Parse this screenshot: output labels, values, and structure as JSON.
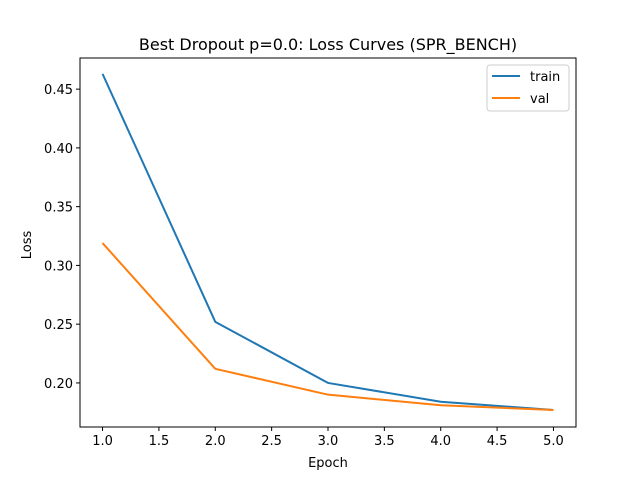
{
  "chart_data": {
    "type": "line",
    "title": "Best Dropout p=0.0: Loss Curves (SPR_BENCH)",
    "xlabel": "Epoch",
    "ylabel": "Loss",
    "xlim": [
      0.8,
      5.2
    ],
    "ylim": [
      0.1625,
      0.4765
    ],
    "x": [
      1,
      2,
      3,
      4,
      5
    ],
    "xticks": [
      1.0,
      1.5,
      2.0,
      2.5,
      3.0,
      3.5,
      4.0,
      4.5,
      5.0
    ],
    "xtick_labels": [
      "1.0",
      "1.5",
      "2.0",
      "2.5",
      "3.0",
      "3.5",
      "4.0",
      "4.5",
      "5.0"
    ],
    "yticks": [
      0.2,
      0.25,
      0.3,
      0.35,
      0.4,
      0.45
    ],
    "ytick_labels": [
      "0.20",
      "0.25",
      "0.30",
      "0.35",
      "0.40",
      "0.45"
    ],
    "series": [
      {
        "name": "train",
        "color": "#1f77b4",
        "values": [
          0.463,
          0.252,
          0.2,
          0.184,
          0.177
        ]
      },
      {
        "name": "val",
        "color": "#ff7f0e",
        "values": [
          0.319,
          0.212,
          0.19,
          0.181,
          0.177
        ]
      }
    ],
    "legend_position": "top-right",
    "grid": false
  }
}
